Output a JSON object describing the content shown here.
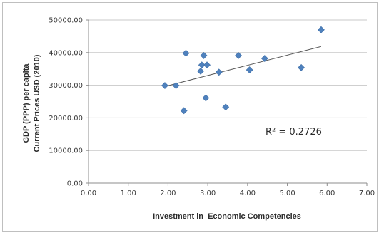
{
  "chart_data": {
    "type": "scatter",
    "xlabel": "Investment in  Economic Competencies",
    "ylabel_lines": [
      "GDP (PPP) per capita",
      "Current Prices USD (2010)"
    ],
    "xlim": [
      0,
      7
    ],
    "ylim": [
      0,
      50000
    ],
    "x_ticks": [
      "0.00",
      "1.00",
      "2.00",
      "3.00",
      "4.00",
      "5.00",
      "6.00",
      "7.00"
    ],
    "y_ticks": [
      "0.00",
      "10000.00",
      "20000.00",
      "30000.00",
      "40000.00",
      "50000.00"
    ],
    "grid": "horizontal",
    "legend": "none",
    "marker_color": "#4f81bd",
    "trendline_color": "#595959",
    "trendline": {
      "type": "linear",
      "r2_label": "R² = 0.2726"
    },
    "series": [
      {
        "points": [
          {
            "x": 1.92,
            "y": 29900
          },
          {
            "x": 2.2,
            "y": 29900
          },
          {
            "x": 2.4,
            "y": 22200
          },
          {
            "x": 2.45,
            "y": 39800
          },
          {
            "x": 2.82,
            "y": 34300
          },
          {
            "x": 2.85,
            "y": 36200
          },
          {
            "x": 2.9,
            "y": 39100
          },
          {
            "x": 2.95,
            "y": 26100
          },
          {
            "x": 2.98,
            "y": 36200
          },
          {
            "x": 3.28,
            "y": 34000
          },
          {
            "x": 3.45,
            "y": 23300
          },
          {
            "x": 3.77,
            "y": 39100
          },
          {
            "x": 4.05,
            "y": 34700
          },
          {
            "x": 4.43,
            "y": 38200
          },
          {
            "x": 5.35,
            "y": 35400
          },
          {
            "x": 5.85,
            "y": 47000
          }
        ]
      }
    ]
  }
}
